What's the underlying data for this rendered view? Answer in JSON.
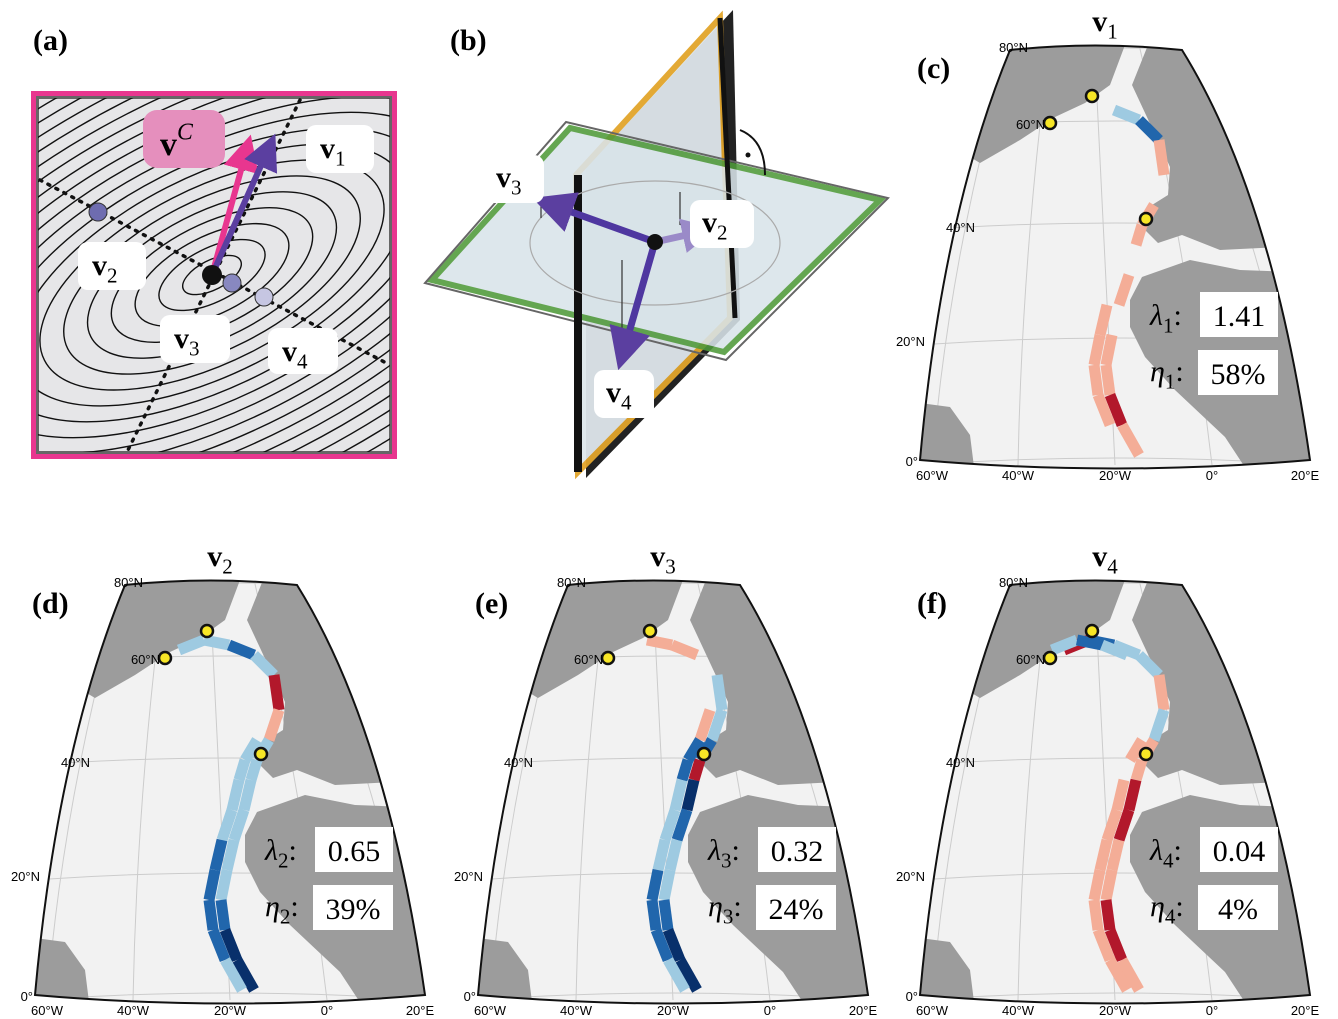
{
  "panel_a": {
    "label": "(a)",
    "vc": {
      "base": "v",
      "sup": "C"
    },
    "vectors": [
      {
        "base": "v",
        "sub": "1"
      },
      {
        "base": "v",
        "sub": "2"
      },
      {
        "base": "v",
        "sub": "3"
      },
      {
        "base": "v",
        "sub": "4"
      }
    ]
  },
  "panel_b": {
    "label": "(b)",
    "vectors": [
      {
        "base": "v",
        "sub": "3"
      },
      {
        "base": "v",
        "sub": "2"
      },
      {
        "base": "v",
        "sub": "4"
      }
    ]
  },
  "map_axes": {
    "lat_labels": [
      "80°N",
      "60°N",
      "40°N",
      "20°N",
      "0°"
    ],
    "lon_labels": [
      "60°W",
      "40°W",
      "20°W",
      "0°",
      "20°E"
    ]
  },
  "maps": [
    {
      "label": "(c)",
      "title": {
        "base": "v",
        "sub": "1"
      },
      "lambda": {
        "symbol": "λ",
        "sub": "1",
        "suffix": ":"
      },
      "lambda_value": "1.41",
      "eta": {
        "symbol": "η",
        "sub": "1",
        "suffix": ":"
      },
      "eta_value": "58%"
    },
    {
      "label": "(d)",
      "title": {
        "base": "v",
        "sub": "2"
      },
      "lambda": {
        "symbol": "λ",
        "sub": "2",
        "suffix": ":"
      },
      "lambda_value": "0.65",
      "eta": {
        "symbol": "η",
        "sub": "2",
        "suffix": ":"
      },
      "eta_value": "39%"
    },
    {
      "label": "(e)",
      "title": {
        "base": "v",
        "sub": "3"
      },
      "lambda": {
        "symbol": "λ",
        "sub": "3",
        "suffix": ":"
      },
      "lambda_value": "0.32",
      "eta": {
        "symbol": "η",
        "sub": "3",
        "suffix": ":"
      },
      "eta_value": "24%"
    },
    {
      "label": "(f)",
      "title": {
        "base": "v",
        "sub": "4"
      },
      "lambda": {
        "symbol": "λ",
        "sub": "4",
        "suffix": ":"
      },
      "lambda_value": "0.04",
      "eta": {
        "symbol": "η",
        "sub": "4",
        "suffix": ":"
      },
      "eta_value": "4%"
    }
  ]
}
